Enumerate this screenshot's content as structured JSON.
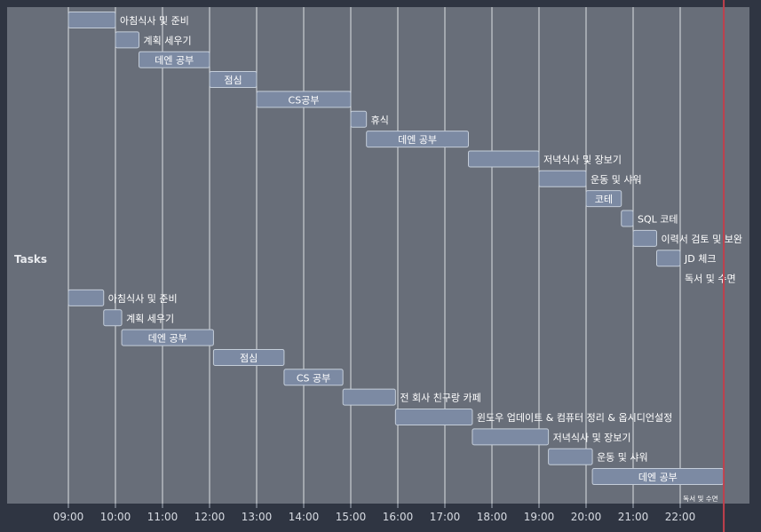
{
  "chart_data": {
    "type": "gantt",
    "ylabel": "Tasks",
    "x_ticks": [
      "09:00",
      "10:00",
      "11:00",
      "12:00",
      "13:00",
      "14:00",
      "15:00",
      "16:00",
      "17:00",
      "18:00",
      "19:00",
      "20:00",
      "21:00",
      "22:00"
    ],
    "xlim": [
      "08:00",
      "23:59"
    ],
    "current_time": "22:55",
    "grid": true,
    "colors": {
      "background": "#2f3542",
      "plot": "#686e79",
      "bar_fill": "#7c8aa3",
      "bar_stroke": "#c4cdd9",
      "grid": "#f2f4f7",
      "today_line": "#c0404c",
      "text": "#ffffff"
    },
    "tasks": [
      {
        "label": "아침식사 및 준비",
        "start": "09:00",
        "end": "10:00",
        "label_pos": "outside"
      },
      {
        "label": "계획 세우기",
        "start": "10:00",
        "end": "10:30",
        "label_pos": "outside"
      },
      {
        "label": "데엔 공부",
        "start": "10:30",
        "end": "12:00",
        "label_pos": "inside"
      },
      {
        "label": "점심",
        "start": "12:00",
        "end": "13:00",
        "label_pos": "inside"
      },
      {
        "label": "CS공부",
        "start": "13:00",
        "end": "15:00",
        "label_pos": "inside"
      },
      {
        "label": "휴식",
        "start": "15:00",
        "end": "15:20",
        "label_pos": "outside"
      },
      {
        "label": "데엔 공부",
        "start": "15:20",
        "end": "17:30",
        "label_pos": "inside"
      },
      {
        "label": "저녁식사 및 장보기",
        "start": "17:30",
        "end": "19:00",
        "label_pos": "outside"
      },
      {
        "label": "운동 및 샤워",
        "start": "19:00",
        "end": "20:00",
        "label_pos": "outside"
      },
      {
        "label": "코테",
        "start": "20:00",
        "end": "20:45",
        "label_pos": "inside"
      },
      {
        "label": "SQL 코테",
        "start": "20:45",
        "end": "21:00",
        "label_pos": "outside"
      },
      {
        "label": "이력서 검토 및 보완",
        "start": "21:00",
        "end": "21:30",
        "label_pos": "outside"
      },
      {
        "label": "JD 체크",
        "start": "21:30",
        "end": "22:00",
        "label_pos": "outside"
      },
      {
        "label": "독서 및 수면",
        "start": "22:00",
        "end": "22:00",
        "label_pos": "outside"
      },
      {
        "label": "아침식사 및 준비",
        "start": "09:00",
        "end": "09:45",
        "label_pos": "outside"
      },
      {
        "label": "계획 세우기",
        "start": "09:45",
        "end": "10:08",
        "label_pos": "outside"
      },
      {
        "label": "데엔 공부",
        "start": "10:08",
        "end": "12:05",
        "label_pos": "inside"
      },
      {
        "label": "점심",
        "start": "12:05",
        "end": "13:35",
        "label_pos": "inside"
      },
      {
        "label": "CS 공부",
        "start": "13:35",
        "end": "14:50",
        "label_pos": "inside"
      },
      {
        "label": "전 회사 친구랑 카페",
        "start": "14:50",
        "end": "15:57",
        "label_pos": "outside"
      },
      {
        "label": "윈도우 업데이트 & 컴퓨터 정리 & 옵시디언설정",
        "start": "15:57",
        "end": "17:35",
        "label_pos": "outside"
      },
      {
        "label": "저녁식사 및 장보기",
        "start": "17:35",
        "end": "19:12",
        "label_pos": "outside"
      },
      {
        "label": "운동 및 샤워",
        "start": "19:12",
        "end": "20:08",
        "label_pos": "outside"
      },
      {
        "label": "데엔 공부",
        "start": "20:08",
        "end": "22:55",
        "label_pos": "inside"
      },
      {
        "label": "독서 및 수면",
        "start": "22:55",
        "end": "22:55",
        "label_pos": "small"
      }
    ]
  }
}
